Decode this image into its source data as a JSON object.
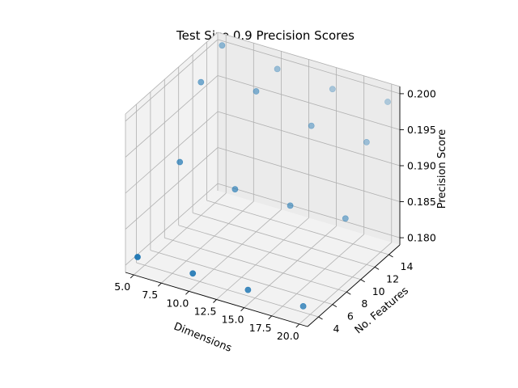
{
  "chart_data": {
    "type": "scatter",
    "projection": "3d",
    "title": "Test Size 0.9 Precision Scores",
    "xlabel": "Dimensions",
    "ylabel": "No. Features",
    "zlabel": "Precision Score",
    "xlim": [
      4.25,
      20.75
    ],
    "ylim": [
      2.45,
      15.55
    ],
    "zlim": [
      0.179,
      0.201
    ],
    "xticks": [
      "5.0",
      "7.5",
      "10.0",
      "12.5",
      "15.0",
      "17.5",
      "20.0"
    ],
    "yticks": [
      "4",
      "6",
      "8",
      "10",
      "12",
      "14"
    ],
    "zticks": [
      "0.180",
      "0.185",
      "0.190",
      "0.195",
      "0.200"
    ],
    "grid": true,
    "color": "#1f77b4",
    "points": [
      {
        "x": 5,
        "y": 3,
        "z": 0.181
      },
      {
        "x": 10,
        "y": 3,
        "z": 0.181
      },
      {
        "x": 15,
        "y": 3,
        "z": 0.181
      },
      {
        "x": 20,
        "y": 3,
        "z": 0.181
      },
      {
        "x": 5,
        "y": 9,
        "z": 0.189
      },
      {
        "x": 10,
        "y": 9,
        "z": 0.1875
      },
      {
        "x": 15,
        "y": 9,
        "z": 0.1875
      },
      {
        "x": 20,
        "y": 9,
        "z": 0.188
      },
      {
        "x": 5,
        "y": 15,
        "z": 0.2
      },
      {
        "x": 10,
        "y": 15,
        "z": 0.199
      },
      {
        "x": 15,
        "y": 15,
        "z": 0.1985
      },
      {
        "x": 20,
        "y": 15,
        "z": 0.199
      },
      {
        "x": 5,
        "y": 12,
        "z": 0.1975
      },
      {
        "x": 10,
        "y": 12,
        "z": 0.1985
      },
      {
        "x": 15,
        "y": 12,
        "z": 0.196
      },
      {
        "x": 20,
        "y": 12,
        "z": 0.196
      }
    ]
  }
}
